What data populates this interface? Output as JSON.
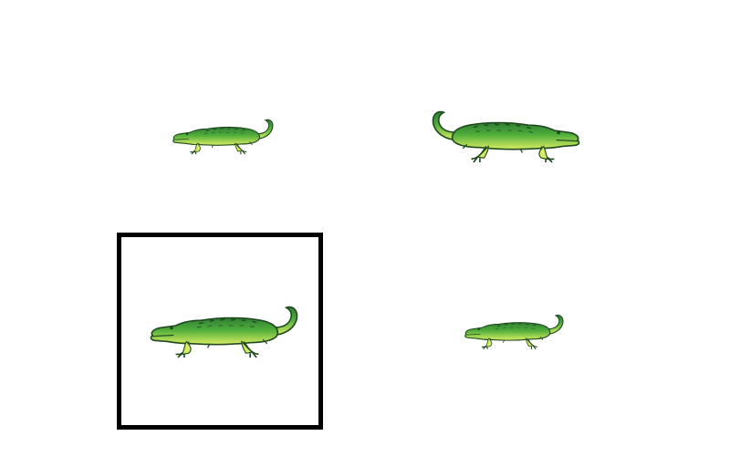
{
  "scene": {
    "background": "#ffffff",
    "selection_color": "#000000",
    "animal_colors": {
      "body": "#4fae3a",
      "back_dark": "#2f7d33",
      "belly": "#d8ec63",
      "outline": "#1f4a1f"
    }
  },
  "items": [
    {
      "id": "top-left",
      "icon": "alligator-icon",
      "facing": "left",
      "size": "small",
      "selected": false
    },
    {
      "id": "top-right",
      "icon": "alligator-icon",
      "facing": "right",
      "size": "large",
      "selected": false
    },
    {
      "id": "bottom-left",
      "icon": "alligator-icon",
      "facing": "left",
      "size": "large",
      "selected": true
    },
    {
      "id": "bottom-right",
      "icon": "alligator-icon",
      "facing": "left",
      "size": "small",
      "selected": false
    }
  ]
}
